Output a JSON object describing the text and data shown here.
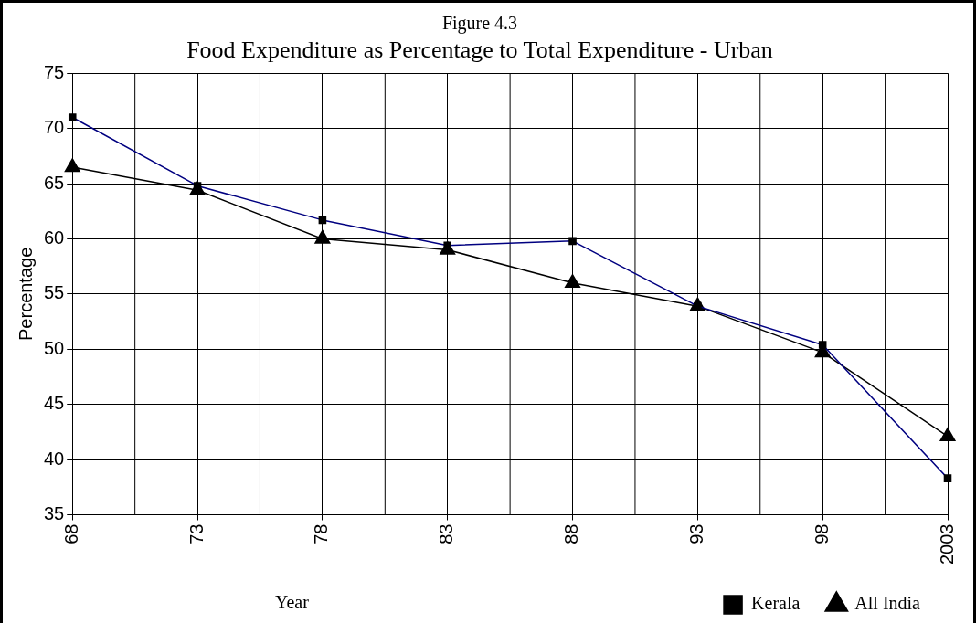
{
  "chart_data": {
    "type": "line",
    "title": "Figure 4.3",
    "subtitle": "Food Expenditure as Percentage to Total Expenditure - Urban",
    "xlabel": "Year",
    "ylabel": "Percentage",
    "categories": [
      "68",
      "73",
      "78",
      "83",
      "88",
      "93",
      "98",
      "2003"
    ],
    "series": [
      {
        "name": "Kerala",
        "color": "#000080",
        "marker": "square",
        "values": [
          71,
          64.8,
          61.7,
          59.4,
          59.8,
          53.9,
          50.4,
          38.3
        ]
      },
      {
        "name": "All India",
        "color": "#000000",
        "marker": "triangle",
        "values": [
          66.5,
          64.4,
          60,
          59,
          56,
          53.9,
          49.7,
          42.1
        ]
      }
    ],
    "ylim": [
      35,
      75
    ],
    "yticks": [
      35,
      40,
      45,
      50,
      55,
      60,
      65,
      70,
      75
    ],
    "grid": true,
    "legend": "bottom right"
  }
}
